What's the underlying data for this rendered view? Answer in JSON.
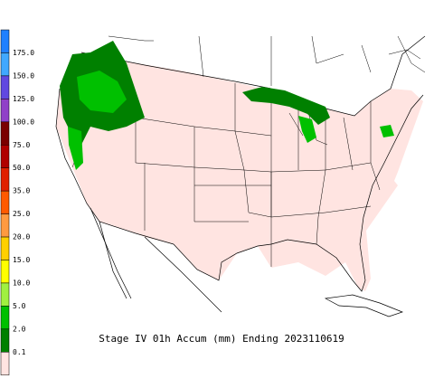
{
  "legend": {
    "labels": [
      "175.0",
      "150.0",
      "125.0",
      "100.0",
      "75.0",
      "50.0",
      "35.0",
      "25.0",
      "20.0",
      "15.0",
      "10.0",
      "5.0",
      "2.0",
      "0.1"
    ],
    "colors": [
      "#2080ff",
      "#40a8ff",
      "#6048e0",
      "#9040c8",
      "#7a0000",
      "#b00000",
      "#e02000",
      "#ff5a00",
      "#ff9a40",
      "#ffd000",
      "#ffff00",
      "#a0f040",
      "#00c000",
      "#008000",
      "#ffe4e1"
    ]
  },
  "caption": "Stage IV 01h Accum (mm) Ending 2023110619"
}
